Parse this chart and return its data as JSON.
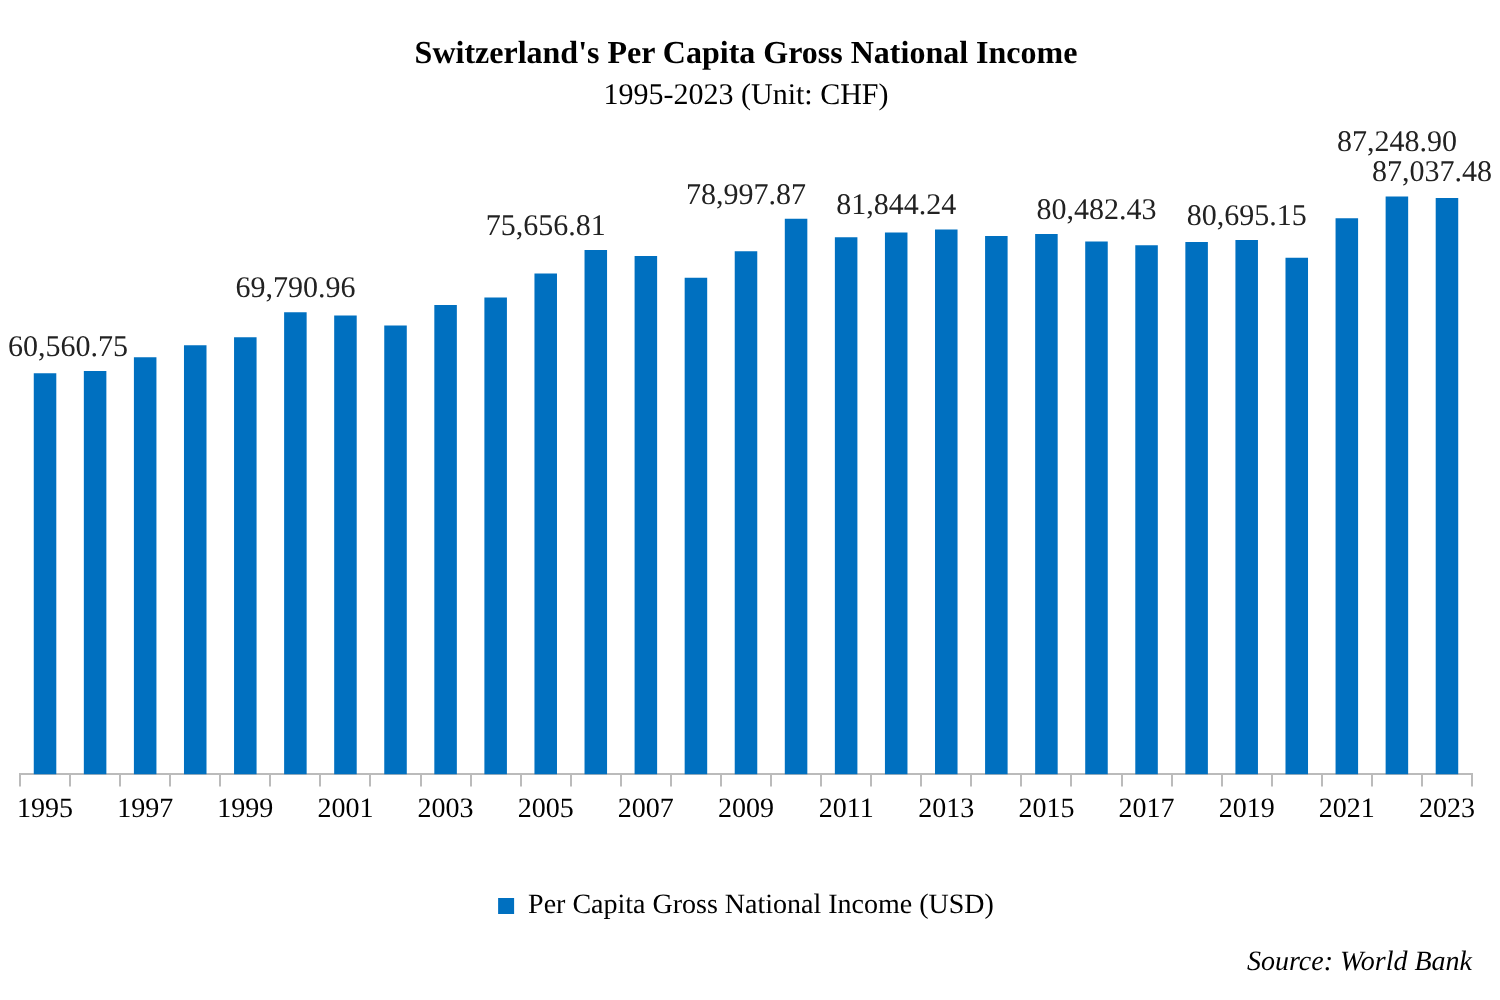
{
  "chart_data": {
    "type": "bar",
    "title": "Switzerland's Per Capita Gross National Income",
    "subtitle": "1995-2023 (Unit: CHF)",
    "categories": [
      "1995",
      null,
      "1997",
      null,
      "1999",
      null,
      "2001",
      null,
      "2003",
      null,
      "2005",
      null,
      "2007",
      null,
      "2009",
      null,
      "2011",
      null,
      "2013",
      null,
      "2015",
      null,
      "2017",
      null,
      "2019",
      null,
      "2021",
      null,
      "2023"
    ],
    "series": [
      {
        "name": "Per Capita Gross National Income (USD)",
        "color": "#0070c0",
        "values": [
          60560.75,
          60900,
          63000,
          64800,
          66000,
          69790.96,
          69300,
          67800,
          70900,
          72000,
          75656.81,
          79200,
          78300,
          75000,
          78997.87,
          83900,
          81100,
          81844.24,
          82300,
          81300,
          81600,
          80482.43,
          79900,
          80400,
          80695.15,
          78000,
          84000,
          87248.9,
          87037.48
        ],
        "value_labels": [
          "60,560.75",
          null,
          null,
          null,
          null,
          "69,790.96",
          null,
          null,
          null,
          null,
          "75,656.81",
          null,
          null,
          null,
          "78,997.87",
          null,
          null,
          "81,844.24",
          null,
          null,
          null,
          "80,482.43",
          null,
          null,
          "80,695.15",
          null,
          null,
          "87,248.90",
          "87,037.48"
        ]
      }
    ],
    "legend": "bottom",
    "grid": false,
    "annotations": [
      "Source:  World Bank"
    ]
  }
}
